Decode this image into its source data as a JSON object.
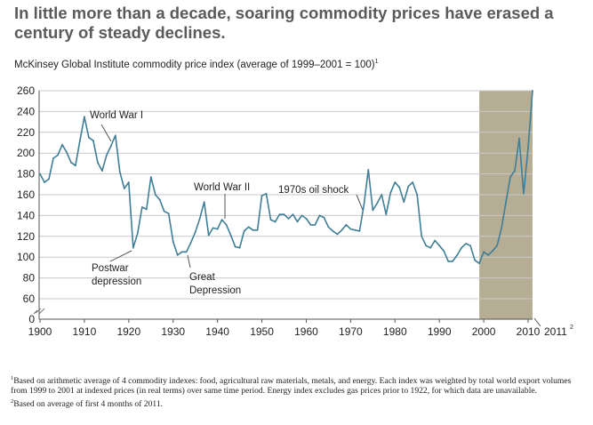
{
  "headline": "In little more than a decade, soaring commodity prices have erased a century of steady declines.",
  "subtitle": "McKinsey Global Institute commodity price index (average of 1999–2001 = 100)",
  "subtitle_note_mark": "1",
  "footnotes": [
    {
      "mark": "1",
      "text": "Based on arithmetic average of 4 commodity indexes: food, agricultural raw materials, metals, and energy. Each index was weighted by total world export volumes from 1999 to 2001 at indexed prices (in real terms) over same time period. Energy index excludes gas prices prior to 1922, for which data are unavailable."
    },
    {
      "mark": "2",
      "text": "Based on average of first 4 months of 2011."
    }
  ],
  "colors": {
    "line": "#3f7e97",
    "shade": "#b5ad94",
    "grid": "#c9c9c9",
    "headline": "#5a5a5a"
  },
  "chart_data": {
    "type": "line",
    "title": "McKinsey Global Institute commodity price index (average of 1999–2001 = 100)",
    "xlabel": "",
    "ylabel": "",
    "xlim": [
      1900,
      2011
    ],
    "ylim": [
      0,
      260
    ],
    "axis_break": true,
    "grid": true,
    "x_ticks": [
      {
        "value": 1900,
        "label": "1900"
      },
      {
        "value": 1910,
        "label": "1910"
      },
      {
        "value": 1920,
        "label": "1920"
      },
      {
        "value": 1930,
        "label": "1930"
      },
      {
        "value": 1940,
        "label": "1940"
      },
      {
        "value": 1950,
        "label": "1950"
      },
      {
        "value": 1960,
        "label": "1960"
      },
      {
        "value": 1970,
        "label": "1970"
      },
      {
        "value": 1980,
        "label": "1980"
      },
      {
        "value": 1990,
        "label": "1990"
      },
      {
        "value": 2000,
        "label": "2000"
      },
      {
        "value": 2010,
        "label": "2010"
      }
    ],
    "extra_x_tick": {
      "label": "2011",
      "note_mark": "2"
    },
    "y_ticks": [
      "0",
      "60",
      "80",
      "100",
      "120",
      "140",
      "160",
      "180",
      "200",
      "220",
      "240",
      "260"
    ],
    "shaded_region": {
      "from": 1999,
      "to": 2011
    },
    "series": [
      {
        "x": [
          1900,
          1901,
          1902,
          1903,
          1904,
          1905,
          1906,
          1907,
          1908,
          1909,
          1910,
          1911,
          1912,
          1913,
          1914,
          1915,
          1916,
          1917,
          1918,
          1919,
          1920,
          1921,
          1922,
          1923,
          1924,
          1925,
          1926,
          1927,
          1928,
          1929,
          1930,
          1931,
          1932,
          1933,
          1934,
          1935,
          1936,
          1937,
          1938,
          1939,
          1940,
          1941,
          1942,
          1943,
          1944,
          1945,
          1946,
          1947,
          1948,
          1949,
          1950,
          1951,
          1952,
          1953,
          1954,
          1955,
          1956,
          1957,
          1958,
          1959,
          1960,
          1961,
          1962,
          1963,
          1964,
          1965,
          1966,
          1967,
          1968,
          1969,
          1970,
          1971,
          1972,
          1973,
          1974,
          1975,
          1976,
          1977,
          1978,
          1979,
          1980,
          1981,
          1982,
          1983,
          1984,
          1985,
          1986,
          1987,
          1988,
          1989,
          1990,
          1991,
          1992,
          1993,
          1994,
          1995,
          1996,
          1997,
          1998,
          1999,
          2000,
          2001,
          2002,
          2003,
          2004,
          2005,
          2006,
          2007,
          2008,
          2009,
          2010,
          2011
        ],
        "values": [
          180,
          172,
          175,
          195,
          198,
          208,
          201,
          191,
          188,
          212,
          235,
          215,
          212,
          191,
          183,
          198,
          207,
          217,
          182,
          166,
          172,
          109,
          123,
          148,
          146,
          177,
          160,
          155,
          144,
          142,
          115,
          102,
          105,
          105,
          114,
          124,
          137,
          153,
          121,
          128,
          127,
          136,
          131,
          121,
          110,
          109,
          125,
          129,
          126,
          126,
          159,
          161,
          136,
          134,
          141,
          141,
          137,
          141,
          134,
          140,
          137,
          131,
          131,
          140,
          138,
          129,
          125,
          122,
          126,
          131,
          127,
          126,
          125,
          150,
          184,
          145,
          152,
          160,
          141,
          162,
          172,
          167,
          153,
          168,
          172,
          160,
          120,
          111,
          109,
          116,
          111,
          106,
          96,
          96,
          102,
          109,
          113,
          111,
          97,
          94,
          105,
          102,
          106,
          111,
          128,
          153,
          177,
          183,
          214,
          161,
          205,
          260
        ]
      }
    ],
    "annotations": [
      {
        "text": "World War I"
      },
      {
        "text": "Postwar depression",
        "lines": [
          "Postwar",
          "depression"
        ]
      },
      {
        "text": "World War II"
      },
      {
        "text": "Great Depression",
        "lines": [
          "Great",
          "Depression"
        ]
      },
      {
        "text": "1970s oil shock"
      }
    ]
  }
}
